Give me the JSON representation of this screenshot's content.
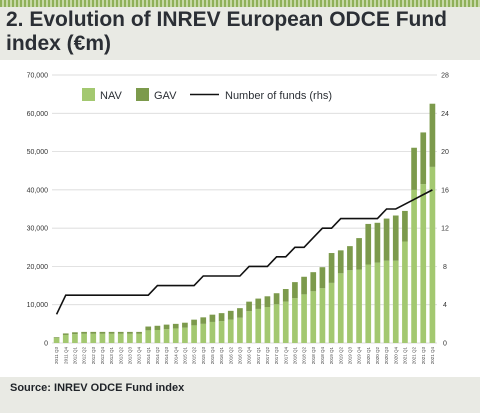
{
  "title": "2. Evolution of INREV European ODCE Fund index (€m)",
  "source": "Source: INREV ODCE Fund index",
  "colors": {
    "nav": "#a3c870",
    "gav": "#7c9a4c",
    "line": "#111111",
    "grid": "#d2d2d2"
  },
  "chart_data": {
    "type": "bar",
    "subtype": "stacked-bar-with-line",
    "categories": [
      "2011 Q3",
      "2011 Q4",
      "2012 Q1",
      "2012 Q2",
      "2012 Q3",
      "2012 Q4",
      "2013 Q1",
      "2013 Q2",
      "2013 Q3",
      "2013 Q4",
      "2014 Q1",
      "2014 Q2",
      "2014 Q3",
      "2014 Q4",
      "2015 Q1",
      "2015 Q2",
      "2015 Q3",
      "2015 Q4",
      "2016 Q1",
      "2016 Q2",
      "2016 Q3",
      "2016 Q4",
      "2017 Q1",
      "2017 Q2",
      "2017 Q3",
      "2017 Q4",
      "2018 Q1",
      "2018 Q2",
      "2018 Q3",
      "2018 Q4",
      "2019 Q1",
      "2019 Q2",
      "2019 Q3",
      "2019 Q4",
      "2020 Q1",
      "2020 Q2",
      "2020 Q3",
      "2020 Q4",
      "2021 Q1",
      "2021 Q2",
      "2021 Q3",
      "2021 Q4"
    ],
    "series": [
      {
        "name": "NAV",
        "values": [
          1300,
          2100,
          2300,
          2400,
          2400,
          2400,
          2400,
          2400,
          2400,
          2400,
          3300,
          3400,
          3600,
          3800,
          4000,
          4600,
          5000,
          5500,
          5700,
          6100,
          6600,
          8300,
          8900,
          9400,
          10100,
          10800,
          11700,
          12700,
          13500,
          14300,
          15700,
          18200,
          19000,
          19200,
          20500,
          21000,
          21500,
          21500,
          26500,
          40000,
          41500,
          46000
        ]
      },
      {
        "name": "GAV",
        "values": [
          200,
          400,
          500,
          500,
          500,
          500,
          500,
          500,
          500,
          500,
          1000,
          1100,
          1200,
          1200,
          1300,
          1500,
          1700,
          1900,
          2100,
          2300,
          2500,
          2500,
          2700,
          2800,
          2900,
          3300,
          4200,
          4600,
          5000,
          5500,
          7800,
          6000,
          6300,
          8200,
          10600,
          10400,
          11000,
          11800,
          8000,
          11000,
          13500,
          16500
        ]
      }
    ],
    "line": {
      "name": "Number of funds (rhs)",
      "values": [
        3,
        5,
        5,
        5,
        5,
        5,
        5,
        5,
        5,
        5,
        5,
        6,
        6,
        6,
        6,
        6,
        7,
        7,
        7,
        7,
        7,
        8,
        8,
        8,
        9,
        9,
        10,
        10,
        11,
        12,
        12,
        13,
        13,
        13,
        13,
        13,
        14,
        14,
        14.5,
        15,
        15.5,
        16
      ]
    },
    "xlabel": "",
    "ylabel": "",
    "ylim": [
      0,
      70000
    ],
    "y2lim": [
      0,
      28
    ],
    "yticks": [
      "0",
      "10,000",
      "20,000",
      "30,000",
      "40,000",
      "50,000",
      "60,000",
      "70,000"
    ],
    "y2ticks": [
      "0",
      "4",
      "8",
      "12",
      "16",
      "20",
      "24",
      "28"
    ],
    "grid": true,
    "legend": {
      "position": "top-left",
      "entries": [
        "NAV",
        "GAV",
        "Number of funds (rhs)"
      ]
    }
  }
}
